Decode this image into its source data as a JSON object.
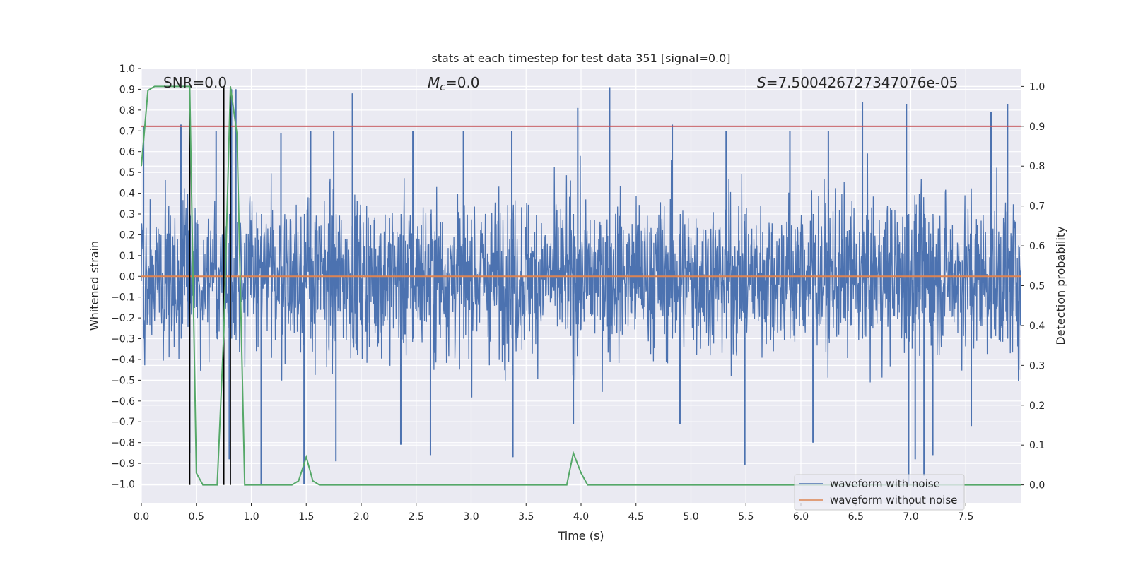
{
  "chart_data": {
    "type": "line",
    "title": "stats at each timestep for test data 351 [signal=0.0]",
    "xlabel": "Time (s)",
    "ylabel": "Whitened strain",
    "y2label": "Detection probability",
    "xlim": [
      0.0,
      8.0
    ],
    "ylim": [
      -1.09,
      1.0
    ],
    "y2lim": [
      -0.045,
      1.045
    ],
    "xticks": [
      "0.0",
      "0.5",
      "1.0",
      "1.5",
      "2.0",
      "2.5",
      "3.0",
      "3.5",
      "4.0",
      "4.5",
      "5.0",
      "5.5",
      "6.0",
      "6.5",
      "7.0",
      "7.5"
    ],
    "yticks": [
      "1.0",
      "0.9",
      "0.8",
      "0.7",
      "0.6",
      "0.5",
      "0.4",
      "0.3",
      "0.2",
      "0.1",
      "0.0",
      "−0.1",
      "−0.2",
      "−0.3",
      "−0.4",
      "−0.5",
      "−0.6",
      "−0.7",
      "−0.8",
      "−0.9",
      "−1.0"
    ],
    "y2ticks": [
      "1.0",
      "0.9",
      "0.8",
      "0.7",
      "0.6",
      "0.5",
      "0.4",
      "0.3",
      "0.2",
      "0.1",
      "0.0"
    ],
    "grid": true,
    "annotations": {
      "snr": "SNR=0.0",
      "mc_symbol": "M",
      "mc_sub": "c",
      "mc_value": "=0.0",
      "s_symbol": "S",
      "s_value": "=7.500426727347076e-05"
    },
    "legend": {
      "placement": "lower-right",
      "entries": [
        "waveform with noise",
        "waveform without noise"
      ]
    },
    "threshold_probability": 0.9,
    "vertical_markers_s": [
      0.44,
      0.75,
      0.81
    ],
    "series": [
      {
        "name": "waveform with noise",
        "axis": "left",
        "color": "#4c72b0",
        "description_range": [
          -1.0,
          0.91
        ],
        "spikes": [
          {
            "x": 0.02,
            "y": 0.72
          },
          {
            "x": 0.36,
            "y": 0.73
          },
          {
            "x": 0.68,
            "y": 0.7
          },
          {
            "x": 0.82,
            "y": 0.9
          },
          {
            "x": 0.86,
            "y": 0.9
          },
          {
            "x": 1.27,
            "y": 0.69
          },
          {
            "x": 1.54,
            "y": 0.7
          },
          {
            "x": 1.75,
            "y": 0.7
          },
          {
            "x": 1.92,
            "y": 0.88
          },
          {
            "x": 2.47,
            "y": 0.7
          },
          {
            "x": 2.93,
            "y": 0.7
          },
          {
            "x": 3.37,
            "y": 0.7
          },
          {
            "x": 3.97,
            "y": 0.81
          },
          {
            "x": 4.26,
            "y": 0.91
          },
          {
            "x": 4.83,
            "y": 0.73
          },
          {
            "x": 5.32,
            "y": 0.7
          },
          {
            "x": 5.9,
            "y": 0.7
          },
          {
            "x": 6.25,
            "y": 0.7
          },
          {
            "x": 6.56,
            "y": 0.84
          },
          {
            "x": 6.96,
            "y": 0.83
          },
          {
            "x": 7.73,
            "y": 0.79
          },
          {
            "x": 7.88,
            "y": 0.83
          },
          {
            "x": 0.44,
            "y": -0.85
          },
          {
            "x": 0.8,
            "y": -0.88
          },
          {
            "x": 1.09,
            "y": -1.0
          },
          {
            "x": 1.48,
            "y": -1.0
          },
          {
            "x": 1.77,
            "y": -0.89
          },
          {
            "x": 2.36,
            "y": -0.81
          },
          {
            "x": 2.63,
            "y": -0.86
          },
          {
            "x": 3.38,
            "y": -0.87
          },
          {
            "x": 3.93,
            "y": -0.71
          },
          {
            "x": 4.9,
            "y": -0.71
          },
          {
            "x": 5.49,
            "y": -0.91
          },
          {
            "x": 6.11,
            "y": -0.8
          },
          {
            "x": 6.98,
            "y": -1.0
          },
          {
            "x": 7.04,
            "y": -0.88
          },
          {
            "x": 7.12,
            "y": -0.96
          },
          {
            "x": 7.2,
            "y": -0.86
          },
          {
            "x": 7.55,
            "y": -0.72
          }
        ]
      },
      {
        "name": "waveform without noise",
        "axis": "left",
        "color": "#dd8452",
        "x": [
          0.0,
          8.0
        ],
        "y": [
          0.0,
          0.0
        ]
      },
      {
        "name": "detection probability",
        "axis": "right",
        "color": "#55a868",
        "x": [
          0.0,
          0.06,
          0.12,
          0.44,
          0.5,
          0.56,
          0.69,
          0.75,
          0.81,
          0.87,
          0.94,
          1.0,
          1.37,
          1.43,
          1.5,
          1.56,
          1.62,
          3.87,
          3.93,
          4.0,
          4.06,
          4.12,
          8.0
        ],
        "y": [
          0.8,
          0.99,
          1.0,
          1.0,
          0.03,
          0.0,
          0.0,
          0.38,
          1.0,
          0.88,
          0.0,
          0.0,
          0.0,
          0.01,
          0.07,
          0.01,
          0.0,
          0.0,
          0.08,
          0.03,
          0.0,
          0.0,
          0.0
        ]
      },
      {
        "name": "detection threshold",
        "axis": "right",
        "color": "#c44e52",
        "x": [
          0.0,
          8.0
        ],
        "y": [
          0.9,
          0.9
        ]
      }
    ]
  }
}
